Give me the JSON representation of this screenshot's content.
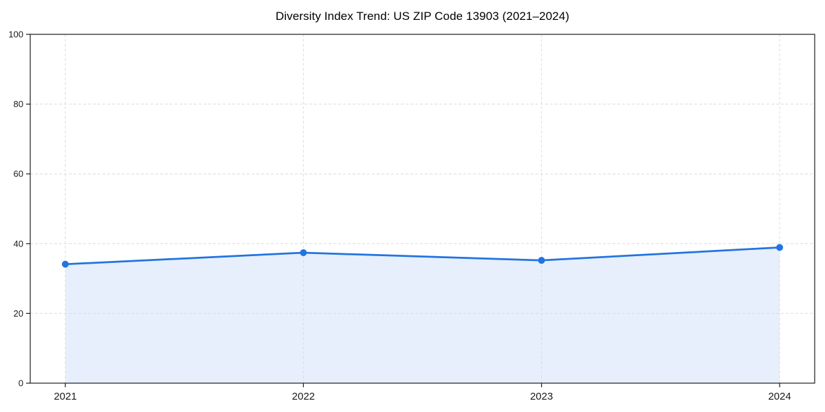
{
  "figure": {
    "title": "Diversity Index Trend: US ZIP Code 13903 (2021–2024)"
  },
  "chart_data": {
    "type": "line",
    "title": "Diversity Index Trend: US ZIP Code 13903 (2021–2024)",
    "categories": [
      "2021",
      "2022",
      "2023",
      "2024"
    ],
    "series": [
      {
        "name": "Diversity Index",
        "values": [
          34.1,
          37.4,
          35.2,
          38.9
        ]
      }
    ],
    "xlabel": "",
    "ylabel": "",
    "ylim": [
      0,
      100
    ],
    "yticks": [
      0,
      20,
      40,
      60,
      80,
      100
    ],
    "grid": "dashed, horizontal and vertical",
    "legend": "none",
    "marker": "circle",
    "area_fill": true,
    "colors": {
      "line": "#2274e0",
      "marker": "#2274e0",
      "area_fill": "#e7effc",
      "grid": "#dcdcdc",
      "axis": "#1a1a1a",
      "tick_text": "#1a1a1a"
    }
  }
}
